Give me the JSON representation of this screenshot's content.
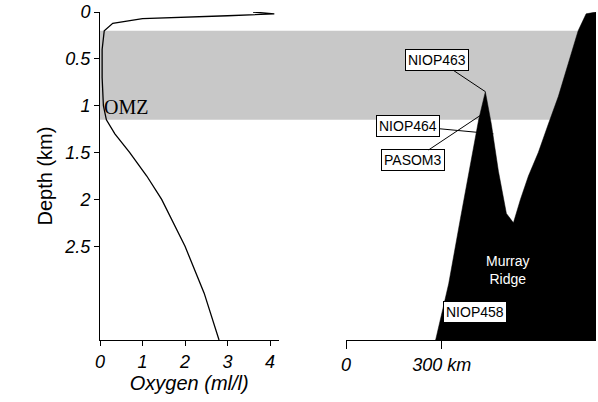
{
  "chart_data": [
    {
      "type": "line",
      "x_label": "Oxygen (ml/l)",
      "y_label": "Depth (km)",
      "x": [
        3.6,
        4.1,
        3.0,
        1.0,
        0.3,
        0.1,
        0.05,
        0.05,
        0.08,
        0.15,
        0.35,
        0.7,
        1.1,
        1.45,
        2.0,
        2.45,
        2.8
      ],
      "y": [
        0,
        0.02,
        0.04,
        0.07,
        0.12,
        0.2,
        0.4,
        0.7,
        1.0,
        1.15,
        1.3,
        1.5,
        1.75,
        2.0,
        2.5,
        3.0,
        3.5
      ],
      "color": "#000000",
      "xlim": [
        0,
        4.2
      ],
      "xticks": [
        0,
        1,
        2,
        3,
        4
      ],
      "ylim": [
        3.5,
        0
      ],
      "yticks": [
        0,
        0.5,
        1,
        1.5,
        2,
        2.5
      ],
      "bands": [
        {
          "label": "OMZ",
          "from": 0.2,
          "to": 1.15,
          "color": "#c8c8c8"
        }
      ]
    },
    {
      "type": "area",
      "x": [
        281,
        322,
        359,
        391,
        416,
        437,
        456,
        478,
        503,
        525,
        547,
        572,
        603,
        634,
        666,
        697,
        728,
        753,
        775,
        784
      ],
      "y": [
        3.5,
        2.9,
        2.2,
        1.6,
        1.15,
        0.85,
        1.2,
        1.7,
        2.15,
        2.25,
        2.0,
        1.75,
        1.5,
        1.2,
        0.9,
        0.55,
        0.2,
        0.02,
        0,
        0
      ],
      "color": "#000000",
      "xlim": [
        0,
        784
      ],
      "xticks": [
        0,
        {
          "value": 300,
          "label": "300 km"
        }
      ],
      "sites": [
        {
          "name": "NIOP463",
          "x": 437,
          "y": 0.85
        },
        {
          "name": "NIOP464",
          "x": 462,
          "y": 1.3
        },
        {
          "name": "PASOM3",
          "x": 445,
          "y": 1.05
        },
        {
          "name": "NIOP458",
          "x": 406,
          "y": 3.2
        }
      ],
      "annotations": [
        {
          "text": "Murray Ridge",
          "x": 509,
          "y": 2.75,
          "color": "#ffffff"
        }
      ]
    }
  ]
}
